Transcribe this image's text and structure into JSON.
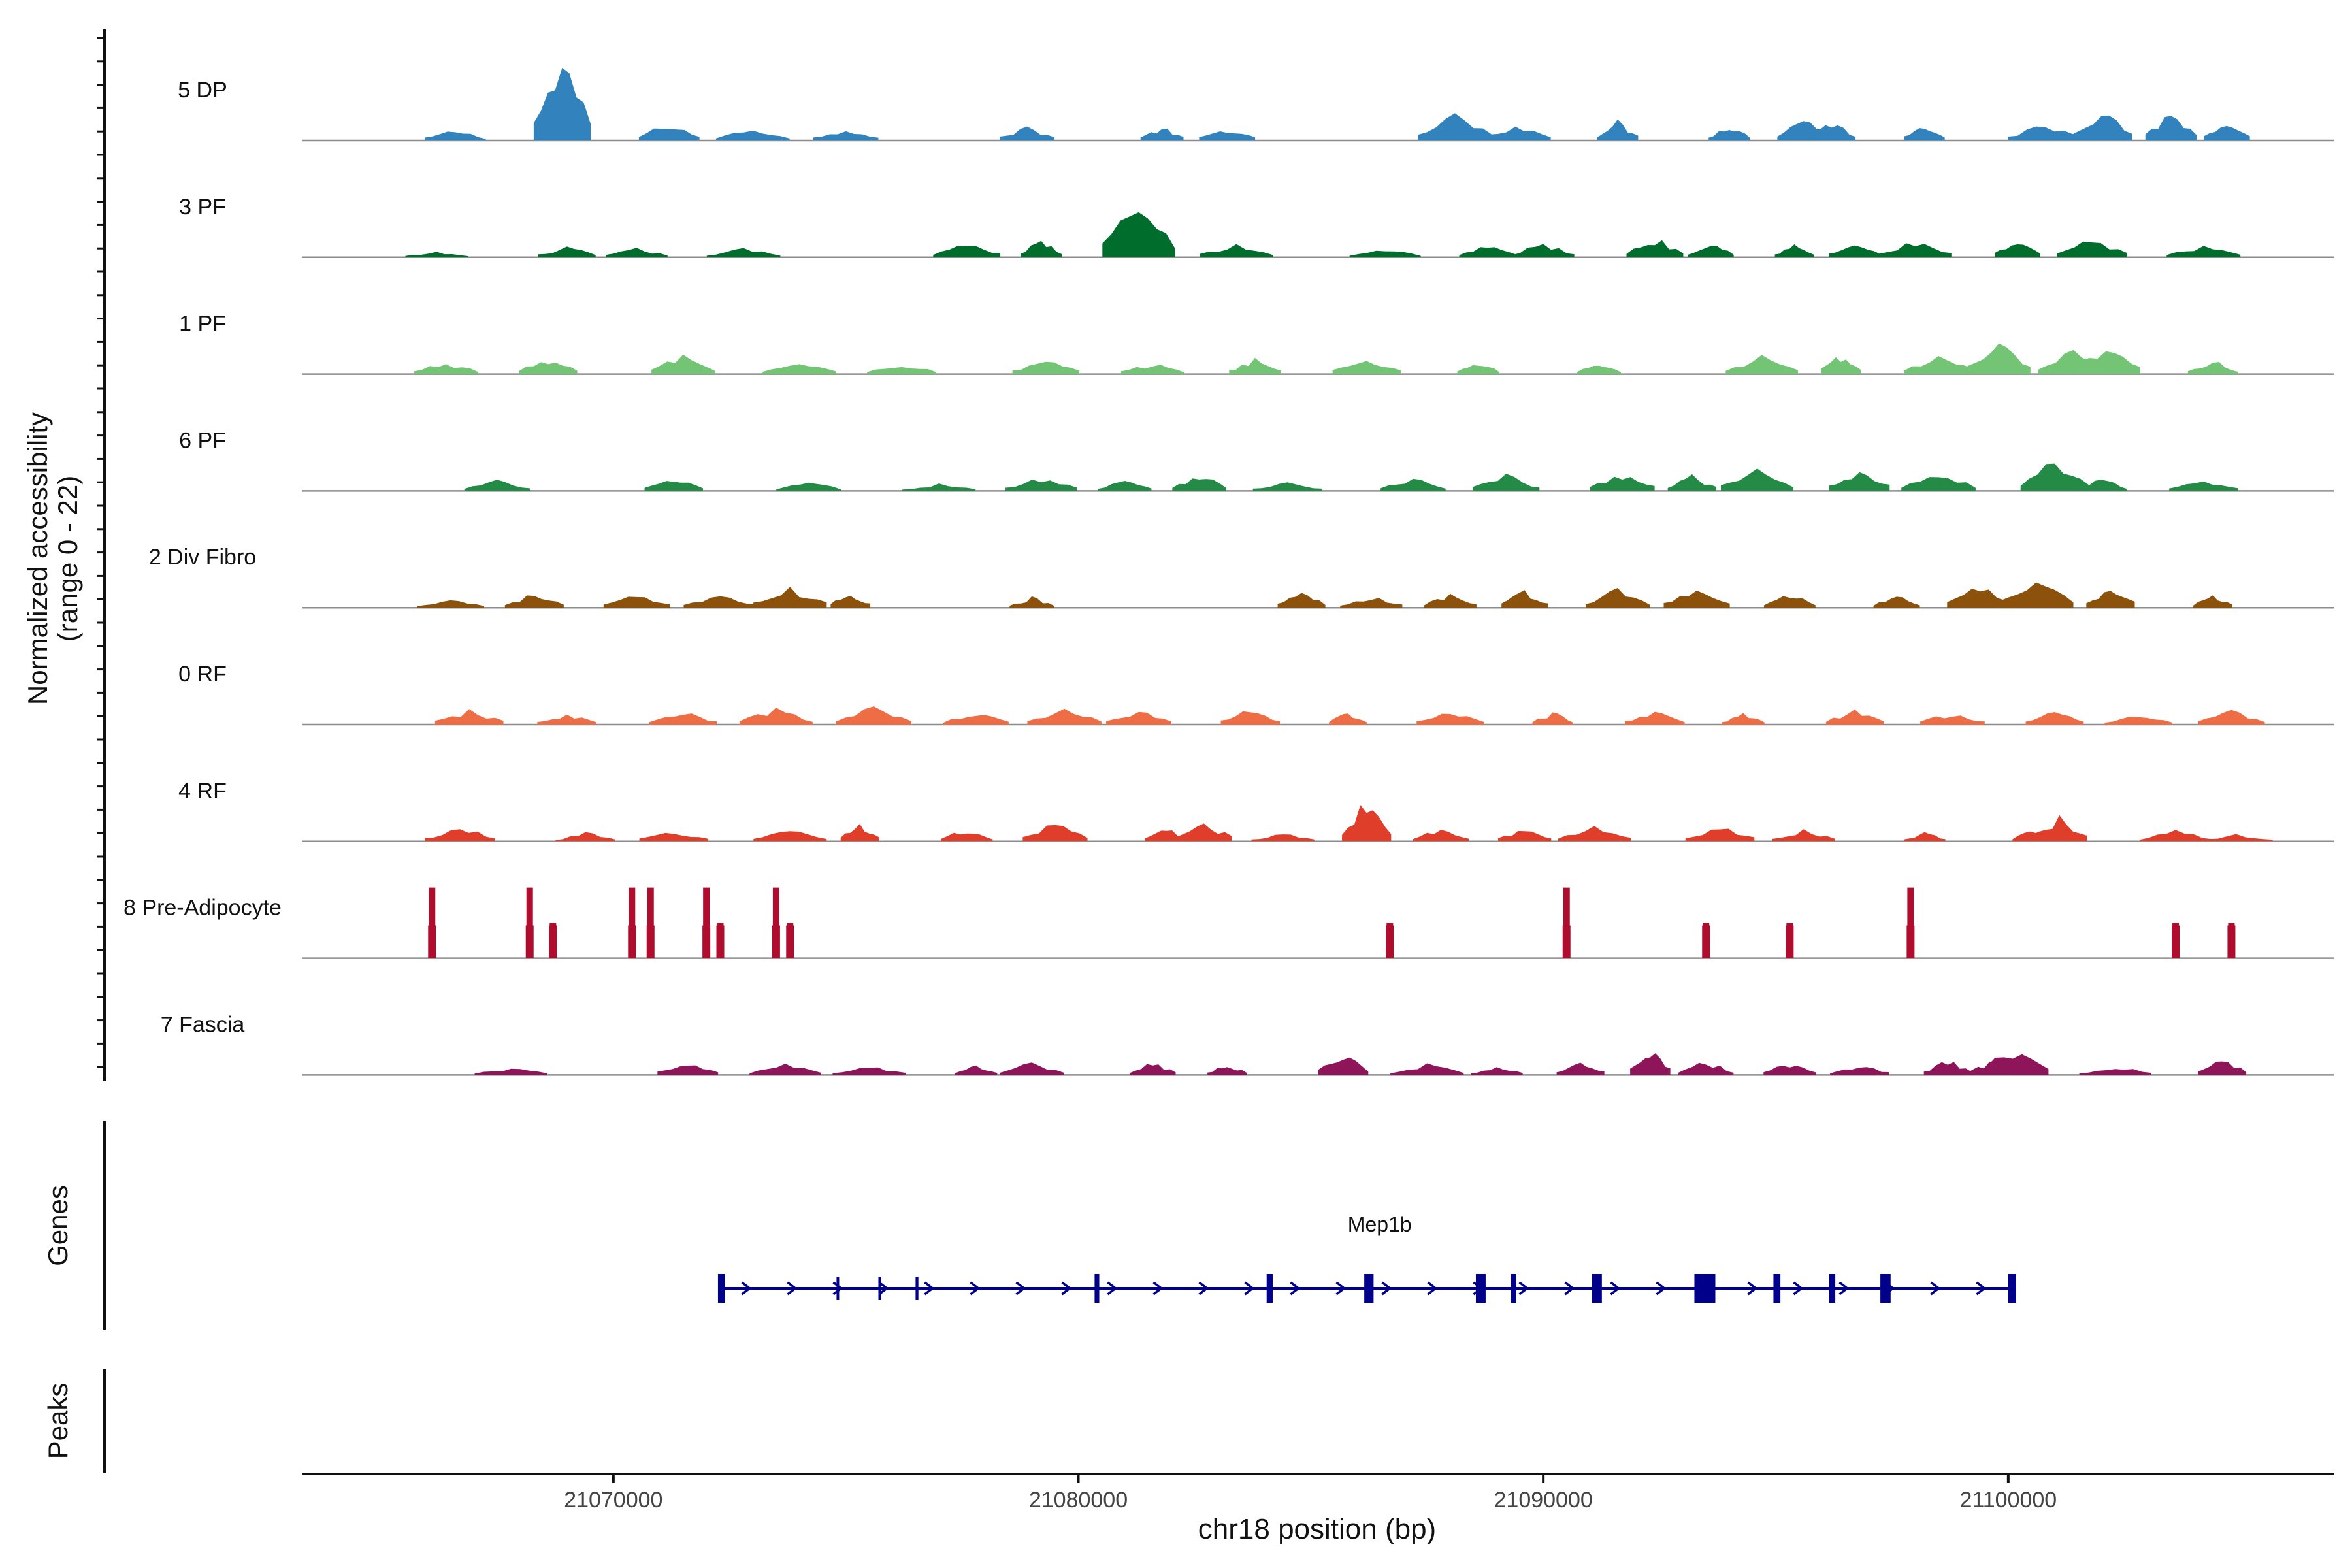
{
  "chart_data": {
    "type": "area",
    "region": {
      "chromosome": "chr18",
      "start": 21063300,
      "end": 21107000
    },
    "coverage": {
      "ylabel_line1": "Normalized accessibility",
      "ylabel_line2": "(range 0 - 22)",
      "ylim": [
        0,
        22
      ],
      "tracks": [
        {
          "name": "5 DP",
          "color": "#3182bd",
          "peaks": [
            [
              21066600,
              0.12
            ],
            [
              21068900,
              0.9
            ],
            [
              21071200,
              0.2
            ],
            [
              21073000,
              0.14
            ],
            [
              21075000,
              0.14
            ],
            [
              21078900,
              0.16
            ],
            [
              21081800,
              0.15
            ],
            [
              21083200,
              0.14
            ],
            [
              21088100,
              0.3
            ],
            [
              21089400,
              0.18
            ],
            [
              21091600,
              0.22
            ],
            [
              21094000,
              0.18
            ],
            [
              21095600,
              0.28
            ],
            [
              21096200,
              0.22
            ],
            [
              21098200,
              0.2
            ],
            [
              21100800,
              0.18
            ],
            [
              21102000,
              0.36
            ],
            [
              21103500,
              0.32
            ],
            [
              21104700,
              0.18
            ]
          ]
        },
        {
          "name": "3 PF",
          "color": "#006d2c",
          "peaks": [
            [
              21066200,
              0.06
            ],
            [
              21069000,
              0.12
            ],
            [
              21070500,
              0.1
            ],
            [
              21072800,
              0.1
            ],
            [
              21077600,
              0.18
            ],
            [
              21079200,
              0.2
            ],
            [
              21081300,
              0.64
            ],
            [
              21083400,
              0.14
            ],
            [
              21086600,
              0.1
            ],
            [
              21088800,
              0.14
            ],
            [
              21090000,
              0.16
            ],
            [
              21092400,
              0.22
            ],
            [
              21093600,
              0.18
            ],
            [
              21095400,
              0.14
            ],
            [
              21096700,
              0.16
            ],
            [
              21098000,
              0.18
            ],
            [
              21100200,
              0.18
            ],
            [
              21101800,
              0.2
            ],
            [
              21104200,
              0.14
            ]
          ]
        },
        {
          "name": "1 PF",
          "color": "#74c476",
          "peaks": [
            [
              21066400,
              0.14
            ],
            [
              21068600,
              0.18
            ],
            [
              21071500,
              0.22
            ],
            [
              21074000,
              0.14
            ],
            [
              21076200,
              0.12
            ],
            [
              21079300,
              0.16
            ],
            [
              21081600,
              0.12
            ],
            [
              21083800,
              0.18
            ],
            [
              21086200,
              0.18
            ],
            [
              21088600,
              0.14
            ],
            [
              21091200,
              0.12
            ],
            [
              21094700,
              0.2
            ],
            [
              21096400,
              0.22
            ],
            [
              21098500,
              0.22
            ],
            [
              21099800,
              0.34
            ],
            [
              21101400,
              0.26
            ],
            [
              21102100,
              0.3
            ],
            [
              21104400,
              0.16
            ]
          ]
        },
        {
          "name": "6 PF",
          "color": "#238b45",
          "peaks": [
            [
              21067500,
              0.12
            ],
            [
              21071300,
              0.14
            ],
            [
              21074200,
              0.1
            ],
            [
              21077000,
              0.08
            ],
            [
              21079200,
              0.16
            ],
            [
              21081000,
              0.14
            ],
            [
              21082600,
              0.2
            ],
            [
              21084500,
              0.1
            ],
            [
              21087200,
              0.14
            ],
            [
              21089200,
              0.18
            ],
            [
              21091700,
              0.2
            ],
            [
              21093200,
              0.18
            ],
            [
              21094600,
              0.24
            ],
            [
              21096800,
              0.26
            ],
            [
              21098500,
              0.22
            ],
            [
              21101000,
              0.34
            ],
            [
              21102000,
              0.14
            ],
            [
              21104200,
              0.14
            ]
          ]
        },
        {
          "name": "2 Div Fibro",
          "color": "#8c510a",
          "peaks": [
            [
              21066500,
              0.1
            ],
            [
              21068300,
              0.16
            ],
            [
              21070500,
              0.14
            ],
            [
              21072300,
              0.16
            ],
            [
              21073800,
              0.22
            ],
            [
              21075100,
              0.18
            ],
            [
              21079000,
              0.12
            ],
            [
              21084800,
              0.18
            ],
            [
              21086300,
              0.14
            ],
            [
              21088000,
              0.16
            ],
            [
              21089600,
              0.2
            ],
            [
              21091600,
              0.22
            ],
            [
              21093300,
              0.2
            ],
            [
              21095300,
              0.16
            ],
            [
              21097600,
              0.14
            ],
            [
              21099400,
              0.24
            ],
            [
              21100600,
              0.3
            ],
            [
              21102200,
              0.26
            ],
            [
              21104400,
              0.14
            ]
          ]
        },
        {
          "name": "0 RF",
          "color": "#ef6d45",
          "peaks": [
            [
              21066900,
              0.16
            ],
            [
              21069000,
              0.12
            ],
            [
              21071500,
              0.14
            ],
            [
              21073500,
              0.18
            ],
            [
              21075600,
              0.2
            ],
            [
              21077800,
              0.14
            ],
            [
              21079700,
              0.18
            ],
            [
              21081300,
              0.16
            ],
            [
              21083700,
              0.18
            ],
            [
              21085800,
              0.14
            ],
            [
              21088000,
              0.14
            ],
            [
              21090200,
              0.14
            ],
            [
              21092400,
              0.16
            ],
            [
              21094300,
              0.12
            ],
            [
              21096700,
              0.16
            ],
            [
              21098800,
              0.14
            ],
            [
              21101000,
              0.14
            ],
            [
              21102800,
              0.12
            ],
            [
              21104800,
              0.16
            ]
          ]
        },
        {
          "name": "4 RF",
          "color": "#de3e2a",
          "peaks": [
            [
              21066700,
              0.16
            ],
            [
              21069400,
              0.1
            ],
            [
              21071300,
              0.12
            ],
            [
              21073800,
              0.14
            ],
            [
              21075300,
              0.2
            ],
            [
              21077600,
              0.14
            ],
            [
              21079500,
              0.2
            ],
            [
              21081900,
              0.14
            ],
            [
              21082700,
              0.22
            ],
            [
              21084400,
              0.1
            ],
            [
              21086200,
              0.46
            ],
            [
              21087800,
              0.14
            ],
            [
              21089600,
              0.14
            ],
            [
              21091100,
              0.18
            ],
            [
              21093800,
              0.18
            ],
            [
              21095600,
              0.14
            ],
            [
              21098200,
              0.1
            ],
            [
              21100600,
              0.14
            ],
            [
              21101100,
              0.28
            ],
            [
              21103600,
              0.12
            ],
            [
              21104900,
              0.08
            ]
          ]
        },
        {
          "name": "8 Pre-Adipocyte",
          "color": "#b00d2e",
          "peaks": [
            [
              21066100,
              0.72
            ],
            [
              21068200,
              0.72
            ],
            [
              21068700,
              0.36
            ],
            [
              21070400,
              0.72
            ],
            [
              21070800,
              0.72
            ],
            [
              21072000,
              0.72
            ],
            [
              21072300,
              0.36
            ],
            [
              21073500,
              0.72
            ],
            [
              21073800,
              0.36
            ],
            [
              21086700,
              0.36
            ],
            [
              21090500,
              0.72
            ],
            [
              21093500,
              0.36
            ],
            [
              21095300,
              0.36
            ],
            [
              21097900,
              0.72
            ],
            [
              21103600,
              0.36
            ],
            [
              21104800,
              0.36
            ]
          ]
        },
        {
          "name": "7 Fascia",
          "color": "#8e1559",
          "peaks": [
            [
              21067800,
              0.08
            ],
            [
              21071600,
              0.14
            ],
            [
              21073700,
              0.12
            ],
            [
              21075500,
              0.1
            ],
            [
              21077800,
              0.12
            ],
            [
              21079000,
              0.14
            ],
            [
              21081600,
              0.14
            ],
            [
              21083200,
              0.12
            ],
            [
              21085700,
              0.24
            ],
            [
              21087500,
              0.12
            ],
            [
              21089000,
              0.1
            ],
            [
              21090800,
              0.16
            ],
            [
              21092300,
              0.3
            ],
            [
              21093500,
              0.16
            ],
            [
              21095300,
              0.14
            ],
            [
              21096800,
              0.12
            ],
            [
              21098700,
              0.18
            ],
            [
              21099600,
              0.14
            ],
            [
              21100100,
              0.3
            ],
            [
              21102300,
              0.1
            ],
            [
              21104600,
              0.18
            ]
          ]
        }
      ]
    },
    "genes": {
      "panel_label": "Genes",
      "color": "#00008b",
      "items": [
        {
          "name": "Mep1b",
          "start": 21072300,
          "end": 21100100,
          "strand": "+",
          "exons": [
            [
              21072250,
              21072400
            ],
            [
              21074800,
              21074850
            ],
            [
              21075700,
              21075760
            ],
            [
              21076500,
              21076560
            ],
            [
              21080350,
              21080450
            ],
            [
              21084050,
              21084180
            ],
            [
              21086150,
              21086350
            ],
            [
              21088550,
              21088760
            ],
            [
              21089300,
              21089420
            ],
            [
              21091050,
              21091260
            ],
            [
              21093250,
              21093700
            ],
            [
              21094950,
              21095100
            ],
            [
              21096150,
              21096280
            ],
            [
              21097250,
              21097470
            ],
            [
              21100000,
              21100170
            ]
          ]
        }
      ]
    },
    "peaks_track": {
      "panel_label": "Peaks",
      "intervals": []
    },
    "x_axis": {
      "label": "chr18 position (bp)",
      "ticks": [
        21070000,
        21080000,
        21090000,
        21100000
      ],
      "tick_labels": [
        "21070000",
        "21080000",
        "21090000",
        "21100000"
      ]
    }
  }
}
